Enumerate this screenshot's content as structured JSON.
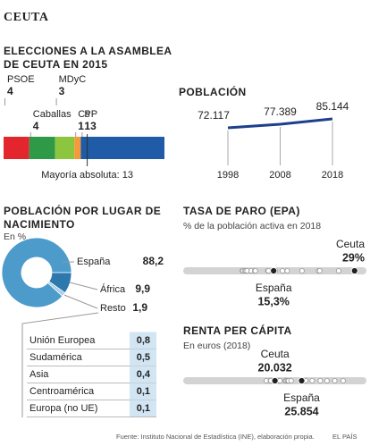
{
  "header": {
    "title": "CEUTA"
  },
  "chart_data": [
    {
      "type": "stacked_bar",
      "title": "ELECCIONES A LA ASAMBLEA DE CEUTA EN 2015",
      "categories": [
        "PSOE",
        "Caballas",
        "MDyC",
        "Cs",
        "PP"
      ],
      "values": [
        4,
        4,
        3,
        1,
        13
      ],
      "colors": [
        "#e3262d",
        "#2e9a48",
        "#8cc63f",
        "#f29a3c",
        "#1f5ba6"
      ],
      "majority": 13,
      "annotation": "Mayoría absoluta: 13"
    },
    {
      "type": "line",
      "title": "POBLACIÓN",
      "x": [
        1998,
        2008,
        2018
      ],
      "xlim": [
        1998,
        2018
      ],
      "xticks": [
        1998,
        2008,
        2018
      ],
      "values": [
        72117,
        77389,
        85144
      ],
      "value_labels": [
        "72.117",
        "77.389",
        "85.144"
      ],
      "color": "#1d3f8c"
    },
    {
      "type": "donut",
      "title": "POBLACIÓN POR LUGAR DE NACIMIENTO",
      "subtitle": "En %",
      "categories": [
        "España",
        "África",
        "Resto"
      ],
      "values": [
        88.2,
        9.9,
        1.9
      ],
      "value_labels": [
        "88,2",
        "9,9",
        "1,9"
      ],
      "colors": [
        "#4c9bcb",
        "#2d78ad",
        "#a8cde6"
      ],
      "breakdown": {
        "categories": [
          "Unión Europea",
          "Sudamérica",
          "Asia",
          "Centroamérica",
          "Europa (no UE)"
        ],
        "values": [
          0.8,
          0.5,
          0.4,
          0.1,
          0.1
        ],
        "value_labels": [
          "0,8",
          "0,5",
          "0,4",
          "0,1",
          "0,1"
        ],
        "color": "#d2e5f3"
      }
    },
    {
      "type": "dot_strip",
      "title": "TASA DE PARO (EPA)",
      "subtitle": "% de la población activa en 2018",
      "xlim": [
        0,
        31
      ],
      "series": [
        {
          "name": "Ceuta",
          "values": [
            29
          ],
          "value_labels": [
            "29%"
          ],
          "color": "#222222"
        },
        {
          "name": "España",
          "values": [
            15.3
          ],
          "value_labels": [
            "15,3%"
          ],
          "color": "#222222"
        }
      ],
      "others": [
        10.0,
        10.1,
        10.4,
        10.6,
        10.8,
        11.5,
        12.1,
        12.2,
        14.3,
        14.4,
        15.6,
        16.8,
        17.6,
        20.1,
        22.9,
        23.1,
        26.3
      ]
    },
    {
      "type": "dot_strip",
      "title": "RENTA PER CÁPITA",
      "subtitle": "En euros (2018)",
      "xlim": [
        0,
        40000
      ],
      "series": [
        {
          "name": "Ceuta",
          "values": [
            20032
          ],
          "value_labels": [
            "20.032"
          ],
          "color": "#222222"
        },
        {
          "name": "España",
          "values": [
            25854
          ],
          "value_labels": [
            "25.854"
          ],
          "color": "#222222"
        }
      ],
      "others": [
        18174,
        19025,
        19107,
        20645,
        20892,
        21134,
        22289,
        22497,
        22789,
        22974,
        23555,
        26333,
        26764,
        28151,
        29936,
        31389,
        33088,
        34916
      ]
    }
  ],
  "footer": {
    "source": "Fuente: Instituto Nacional de Estadística (INE), elaboración propia.",
    "brand": "EL PAÍS"
  }
}
